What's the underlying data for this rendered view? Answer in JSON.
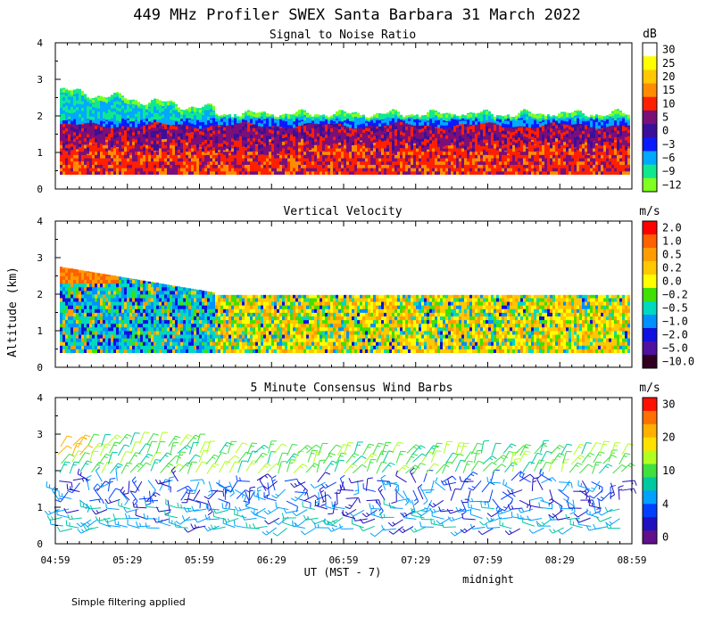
{
  "title": "449 MHz Profiler SWEX Santa Barbara 31 March 2022",
  "y_axis_label": "Altitude (km)",
  "x_axis_label": "UT  (MST - 7)",
  "midnight_label": "midnight",
  "footer_note": "Simple filtering applied",
  "chart_data": [
    {
      "type": "heatmap",
      "title": "Signal to Noise Ratio",
      "unit": "dB",
      "ylim": [
        0,
        4
      ],
      "y_ticks": [
        "0",
        "1",
        "2",
        "3",
        "4"
      ],
      "x_ticks": [
        "04:59",
        "05:29",
        "05:59",
        "06:29",
        "06:59",
        "07:29",
        "07:59",
        "08:29",
        "08:59"
      ],
      "colorbar": {
        "labels": [
          "30",
          "25",
          "20",
          "15",
          "10",
          "5",
          "0",
          "−3",
          "−6",
          "−9",
          "−12"
        ],
        "colors": [
          "#ffffff",
          "#ffff00",
          "#ffc800",
          "#ff8c00",
          "#ff2000",
          "#7a0f7a",
          "#3a0f9a",
          "#0a1aff",
          "#00a8ff",
          "#10e890",
          "#80ff20"
        ]
      }
    },
    {
      "type": "heatmap",
      "title": "Vertical Velocity",
      "unit": "m/s",
      "ylim": [
        0,
        4
      ],
      "y_ticks": [
        "0",
        "1",
        "2",
        "3",
        "4"
      ],
      "x_ticks": [
        "04:59",
        "05:29",
        "05:59",
        "06:29",
        "06:59",
        "07:29",
        "07:59",
        "08:29",
        "08:59"
      ],
      "colorbar": {
        "labels": [
          "2.0",
          "1.0",
          "0.5",
          "0.2",
          "0.0",
          "−0.2",
          "−0.5",
          "−1.0",
          "−2.0",
          "−5.0",
          "−10.0"
        ],
        "colors": [
          "#ff0000",
          "#ff6000",
          "#ff9c00",
          "#ffc800",
          "#ffff00",
          "#40e000",
          "#00d8c0",
          "#0090ff",
          "#1010e0",
          "#5010a0",
          "#300020"
        ]
      }
    },
    {
      "type": "scatter",
      "title": "5 Minute Consensus Wind Barbs",
      "unit": "m/s",
      "ylim": [
        0,
        4
      ],
      "y_ticks": [
        "0",
        "1",
        "2",
        "3",
        "4"
      ],
      "x_ticks": [
        "04:59",
        "05:29",
        "05:59",
        "06:29",
        "06:59",
        "07:29",
        "07:59",
        "08:29",
        "08:59"
      ],
      "colorbar": {
        "labels": [
          "30",
          "20",
          "10",
          "4",
          "0"
        ],
        "colors": [
          "#ff1000",
          "#ff7000",
          "#ffb000",
          "#ffe000",
          "#b0ff20",
          "#40e040",
          "#00c8a0",
          "#00a0ff",
          "#0040ff",
          "#2010c0",
          "#60108a"
        ]
      }
    }
  ]
}
